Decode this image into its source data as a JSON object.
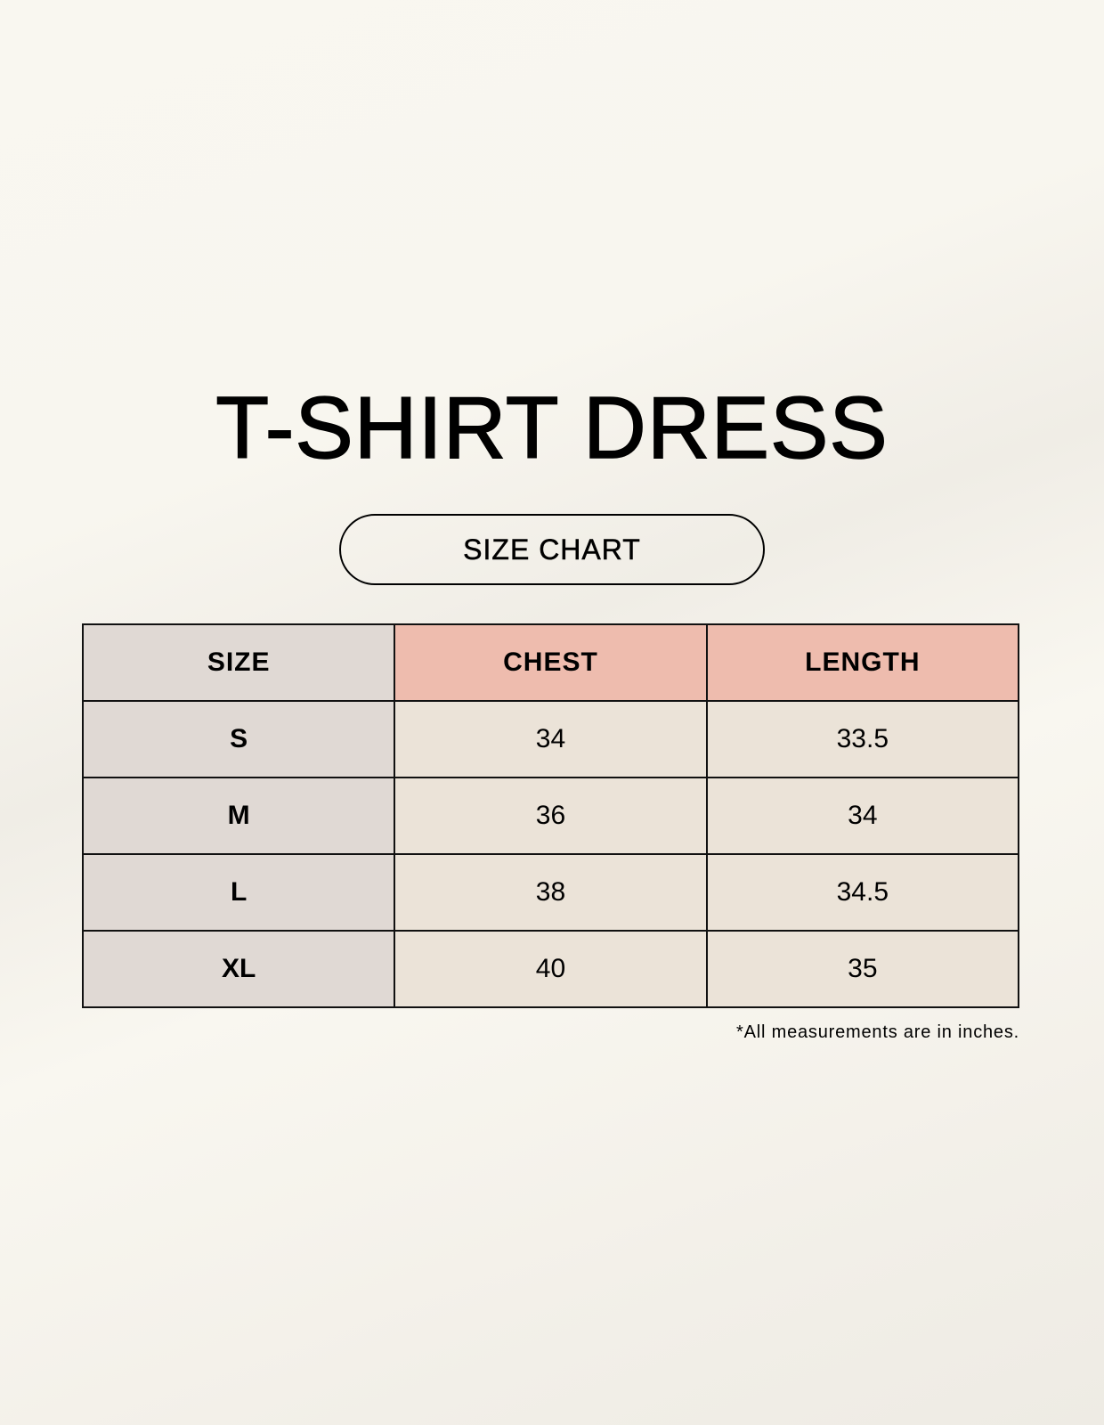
{
  "title": "T-SHIRT DRESS",
  "subtitle": "SIZE CHART",
  "table": {
    "headers": [
      "SIZE",
      "CHEST",
      "LENGTH"
    ],
    "rows": [
      [
        "S",
        "34",
        "33.5"
      ],
      [
        "M",
        "36",
        "34"
      ],
      [
        "L",
        "38",
        "34.5"
      ],
      [
        "XL",
        "40",
        "35"
      ]
    ]
  },
  "footnote": "*All measurements are in inches.",
  "colors": {
    "size_column": "#e0d9d4",
    "header_accent": "#eebcae",
    "cell": "#ebe3d8",
    "background": "#f9f7f0"
  }
}
